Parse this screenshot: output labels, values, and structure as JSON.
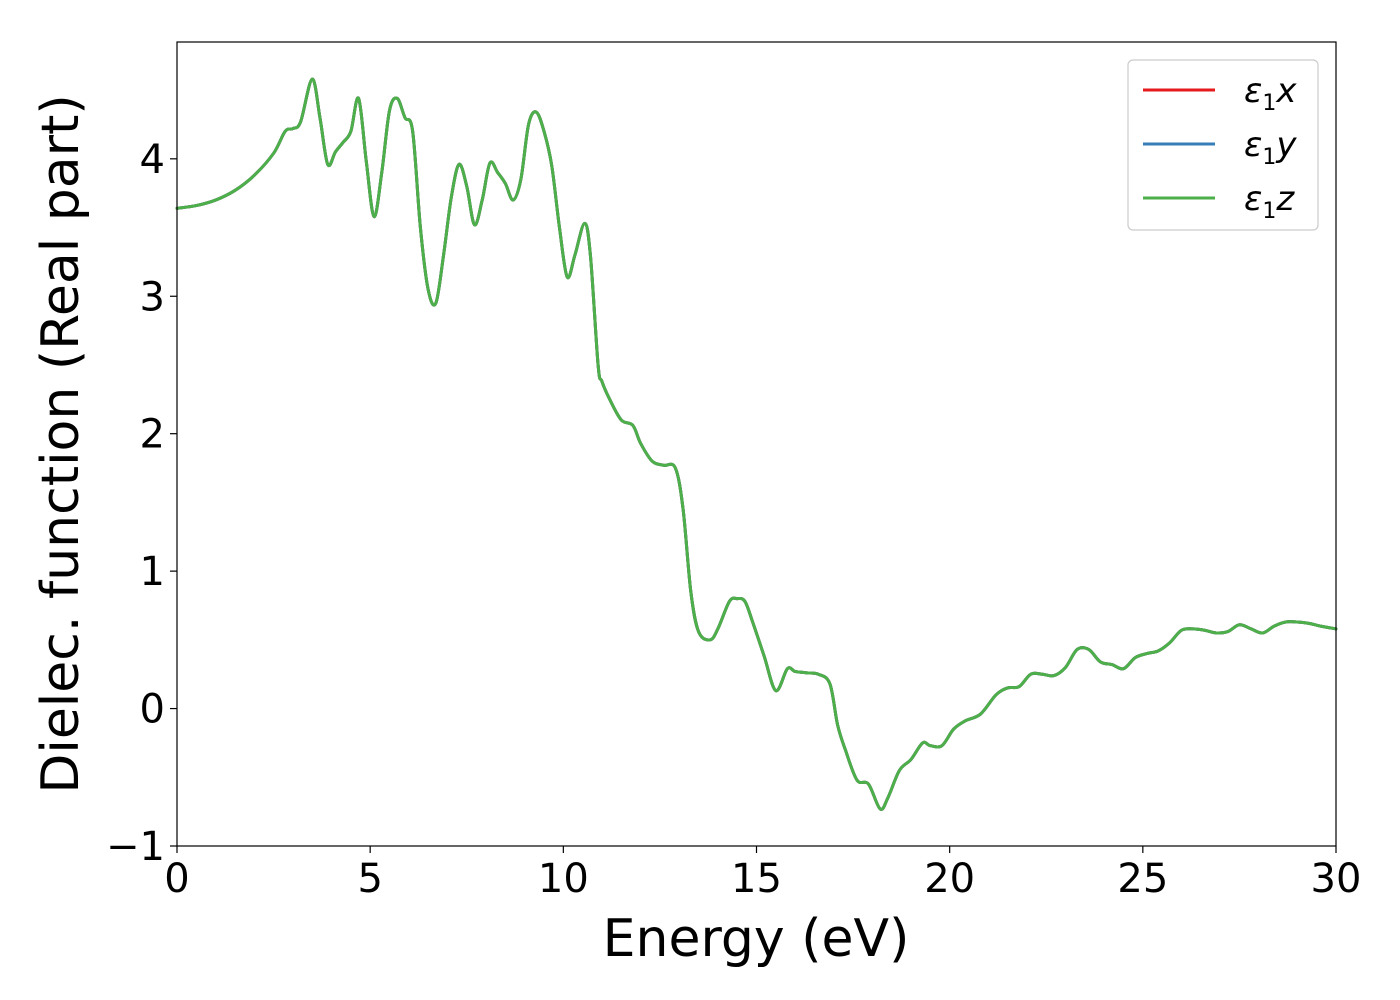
{
  "chart_data": {
    "type": "line",
    "title": "",
    "xlabel": "Energy (eV)",
    "ylabel": "Dielec. function (Real part)",
    "xlim": [
      0,
      30
    ],
    "ylim": [
      -1,
      4.85
    ],
    "xticks": [
      0,
      5,
      10,
      15,
      20,
      25,
      30
    ],
    "yticks": [
      -1,
      0,
      1,
      2,
      3,
      4
    ],
    "xtick_labels": [
      "0",
      "5",
      "10",
      "15",
      "20",
      "25",
      "30"
    ],
    "ytick_labels": [
      "−1",
      "0",
      "1",
      "2",
      "3",
      "4"
    ],
    "grid": false,
    "legend_position": "top-right",
    "colors": {
      "eps1x": "#e41a1c",
      "eps1y": "#377eb8",
      "eps1z": "#4daf4a"
    },
    "series": [
      {
        "name": "ε1x",
        "legend_base": "ε",
        "legend_sub": "1",
        "legend_tail": "x",
        "color": "#e41a1c",
        "x": [
          0,
          0.5,
          1.0,
          1.5,
          2.0,
          2.5,
          2.8,
          3.0,
          3.2,
          3.5,
          3.7,
          3.9,
          4.1,
          4.3,
          4.5,
          4.7,
          4.9,
          5.1,
          5.3,
          5.5,
          5.7,
          5.9,
          6.1,
          6.3,
          6.5,
          6.7,
          6.9,
          7.1,
          7.3,
          7.5,
          7.7,
          7.9,
          8.1,
          8.3,
          8.5,
          8.7,
          8.9,
          9.1,
          9.3,
          9.5,
          9.7,
          9.9,
          10.1,
          10.3,
          10.55,
          10.7,
          10.9,
          11.0,
          11.2,
          11.5,
          11.8,
          12.0,
          12.3,
          12.6,
          12.9,
          13.1,
          13.3,
          13.5,
          13.8,
          14.0,
          14.3,
          14.5,
          14.7,
          14.9,
          15.2,
          15.5,
          15.8,
          16.0,
          16.3,
          16.6,
          16.9,
          17.1,
          17.3,
          17.6,
          17.9,
          18.2,
          18.4,
          18.7,
          19.0,
          19.3,
          19.5,
          19.8,
          20.1,
          20.4,
          20.8,
          21.2,
          21.5,
          21.8,
          22.1,
          22.4,
          22.7,
          23.0,
          23.3,
          23.6,
          23.9,
          24.2,
          24.5,
          24.8,
          25.1,
          25.4,
          25.7,
          26.0,
          26.3,
          26.6,
          26.9,
          27.2,
          27.5,
          27.8,
          28.1,
          28.4,
          28.7,
          29.0,
          29.3,
          29.6,
          30.0
        ],
        "values": [
          3.64,
          3.66,
          3.7,
          3.77,
          3.88,
          4.04,
          4.2,
          4.22,
          4.27,
          4.58,
          4.3,
          3.96,
          4.05,
          4.12,
          4.2,
          4.44,
          3.98,
          3.58,
          3.9,
          4.35,
          4.44,
          4.3,
          4.2,
          3.5,
          3.05,
          2.95,
          3.3,
          3.72,
          3.96,
          3.8,
          3.52,
          3.7,
          3.97,
          3.9,
          3.82,
          3.7,
          3.85,
          4.25,
          4.34,
          4.2,
          3.95,
          3.5,
          3.14,
          3.3,
          3.53,
          3.3,
          2.5,
          2.38,
          2.25,
          2.1,
          2.06,
          1.93,
          1.8,
          1.77,
          1.75,
          1.45,
          0.85,
          0.56,
          0.5,
          0.58,
          0.78,
          0.8,
          0.78,
          0.63,
          0.38,
          0.13,
          0.29,
          0.27,
          0.26,
          0.25,
          0.18,
          -0.12,
          -0.3,
          -0.52,
          -0.55,
          -0.73,
          -0.65,
          -0.45,
          -0.37,
          -0.25,
          -0.27,
          -0.27,
          -0.15,
          -0.09,
          -0.04,
          0.1,
          0.15,
          0.16,
          0.25,
          0.25,
          0.24,
          0.3,
          0.43,
          0.43,
          0.34,
          0.32,
          0.29,
          0.37,
          0.4,
          0.42,
          0.48,
          0.57,
          0.58,
          0.57,
          0.55,
          0.56,
          0.61,
          0.58,
          0.55,
          0.6,
          0.63,
          0.63,
          0.62,
          0.6,
          0.58
        ]
      },
      {
        "name": "ε1y",
        "legend_base": "ε",
        "legend_sub": "1",
        "legend_tail": "y",
        "color": "#377eb8",
        "x": [
          0,
          0.5,
          1.0,
          1.5,
          2.0,
          2.5,
          2.8,
          3.0,
          3.2,
          3.5,
          3.7,
          3.9,
          4.1,
          4.3,
          4.5,
          4.7,
          4.9,
          5.1,
          5.3,
          5.5,
          5.7,
          5.9,
          6.1,
          6.3,
          6.5,
          6.7,
          6.9,
          7.1,
          7.3,
          7.5,
          7.7,
          7.9,
          8.1,
          8.3,
          8.5,
          8.7,
          8.9,
          9.1,
          9.3,
          9.5,
          9.7,
          9.9,
          10.1,
          10.3,
          10.55,
          10.7,
          10.9,
          11.0,
          11.2,
          11.5,
          11.8,
          12.0,
          12.3,
          12.6,
          12.9,
          13.1,
          13.3,
          13.5,
          13.8,
          14.0,
          14.3,
          14.5,
          14.7,
          14.9,
          15.2,
          15.5,
          15.8,
          16.0,
          16.3,
          16.6,
          16.9,
          17.1,
          17.3,
          17.6,
          17.9,
          18.2,
          18.4,
          18.7,
          19.0,
          19.3,
          19.5,
          19.8,
          20.1,
          20.4,
          20.8,
          21.2,
          21.5,
          21.8,
          22.1,
          22.4,
          22.7,
          23.0,
          23.3,
          23.6,
          23.9,
          24.2,
          24.5,
          24.8,
          25.1,
          25.4,
          25.7,
          26.0,
          26.3,
          26.6,
          26.9,
          27.2,
          27.5,
          27.8,
          28.1,
          28.4,
          28.7,
          29.0,
          29.3,
          29.6,
          30.0
        ],
        "values": [
          3.64,
          3.66,
          3.7,
          3.77,
          3.88,
          4.04,
          4.2,
          4.22,
          4.27,
          4.58,
          4.3,
          3.96,
          4.05,
          4.12,
          4.2,
          4.44,
          3.98,
          3.58,
          3.9,
          4.35,
          4.44,
          4.3,
          4.2,
          3.5,
          3.05,
          2.95,
          3.3,
          3.72,
          3.96,
          3.8,
          3.52,
          3.7,
          3.97,
          3.9,
          3.82,
          3.7,
          3.85,
          4.25,
          4.34,
          4.2,
          3.95,
          3.5,
          3.14,
          3.3,
          3.53,
          3.3,
          2.5,
          2.38,
          2.25,
          2.1,
          2.06,
          1.93,
          1.8,
          1.77,
          1.75,
          1.45,
          0.85,
          0.56,
          0.5,
          0.58,
          0.78,
          0.8,
          0.78,
          0.63,
          0.38,
          0.13,
          0.29,
          0.27,
          0.26,
          0.25,
          0.18,
          -0.12,
          -0.3,
          -0.52,
          -0.55,
          -0.73,
          -0.65,
          -0.45,
          -0.37,
          -0.25,
          -0.27,
          -0.27,
          -0.15,
          -0.09,
          -0.04,
          0.1,
          0.15,
          0.16,
          0.25,
          0.25,
          0.24,
          0.3,
          0.43,
          0.43,
          0.34,
          0.32,
          0.29,
          0.37,
          0.4,
          0.42,
          0.48,
          0.57,
          0.58,
          0.57,
          0.55,
          0.56,
          0.61,
          0.58,
          0.55,
          0.6,
          0.63,
          0.63,
          0.62,
          0.6,
          0.58
        ]
      },
      {
        "name": "ε1z",
        "legend_base": "ε",
        "legend_sub": "1",
        "legend_tail": "z",
        "color": "#4daf4a",
        "x": [
          0,
          0.5,
          1.0,
          1.5,
          2.0,
          2.5,
          2.8,
          3.0,
          3.2,
          3.5,
          3.7,
          3.9,
          4.1,
          4.3,
          4.5,
          4.7,
          4.9,
          5.1,
          5.3,
          5.5,
          5.7,
          5.9,
          6.1,
          6.3,
          6.5,
          6.7,
          6.9,
          7.1,
          7.3,
          7.5,
          7.7,
          7.9,
          8.1,
          8.3,
          8.5,
          8.7,
          8.9,
          9.1,
          9.3,
          9.5,
          9.7,
          9.9,
          10.1,
          10.3,
          10.55,
          10.7,
          10.9,
          11.0,
          11.2,
          11.5,
          11.8,
          12.0,
          12.3,
          12.6,
          12.9,
          13.1,
          13.3,
          13.5,
          13.8,
          14.0,
          14.3,
          14.5,
          14.7,
          14.9,
          15.2,
          15.5,
          15.8,
          16.0,
          16.3,
          16.6,
          16.9,
          17.1,
          17.3,
          17.6,
          17.9,
          18.2,
          18.4,
          18.7,
          19.0,
          19.3,
          19.5,
          19.8,
          20.1,
          20.4,
          20.8,
          21.2,
          21.5,
          21.8,
          22.1,
          22.4,
          22.7,
          23.0,
          23.3,
          23.6,
          23.9,
          24.2,
          24.5,
          24.8,
          25.1,
          25.4,
          25.7,
          26.0,
          26.3,
          26.6,
          26.9,
          27.2,
          27.5,
          27.8,
          28.1,
          28.4,
          28.7,
          29.0,
          29.3,
          29.6,
          30.0
        ],
        "values": [
          3.64,
          3.66,
          3.7,
          3.77,
          3.88,
          4.04,
          4.2,
          4.22,
          4.27,
          4.58,
          4.3,
          3.96,
          4.05,
          4.12,
          4.2,
          4.44,
          3.98,
          3.58,
          3.9,
          4.35,
          4.44,
          4.3,
          4.2,
          3.5,
          3.05,
          2.95,
          3.3,
          3.72,
          3.96,
          3.8,
          3.52,
          3.7,
          3.97,
          3.9,
          3.82,
          3.7,
          3.85,
          4.25,
          4.34,
          4.2,
          3.95,
          3.5,
          3.14,
          3.3,
          3.53,
          3.3,
          2.5,
          2.38,
          2.25,
          2.1,
          2.06,
          1.93,
          1.8,
          1.77,
          1.75,
          1.45,
          0.85,
          0.56,
          0.5,
          0.58,
          0.78,
          0.8,
          0.78,
          0.63,
          0.38,
          0.13,
          0.29,
          0.27,
          0.26,
          0.25,
          0.18,
          -0.12,
          -0.3,
          -0.52,
          -0.55,
          -0.73,
          -0.65,
          -0.45,
          -0.37,
          -0.25,
          -0.27,
          -0.27,
          -0.15,
          -0.09,
          -0.04,
          0.1,
          0.15,
          0.16,
          0.25,
          0.25,
          0.24,
          0.3,
          0.43,
          0.43,
          0.34,
          0.32,
          0.29,
          0.37,
          0.4,
          0.42,
          0.48,
          0.57,
          0.58,
          0.57,
          0.55,
          0.56,
          0.61,
          0.58,
          0.55,
          0.6,
          0.63,
          0.63,
          0.62,
          0.6,
          0.58
        ]
      }
    ]
  }
}
